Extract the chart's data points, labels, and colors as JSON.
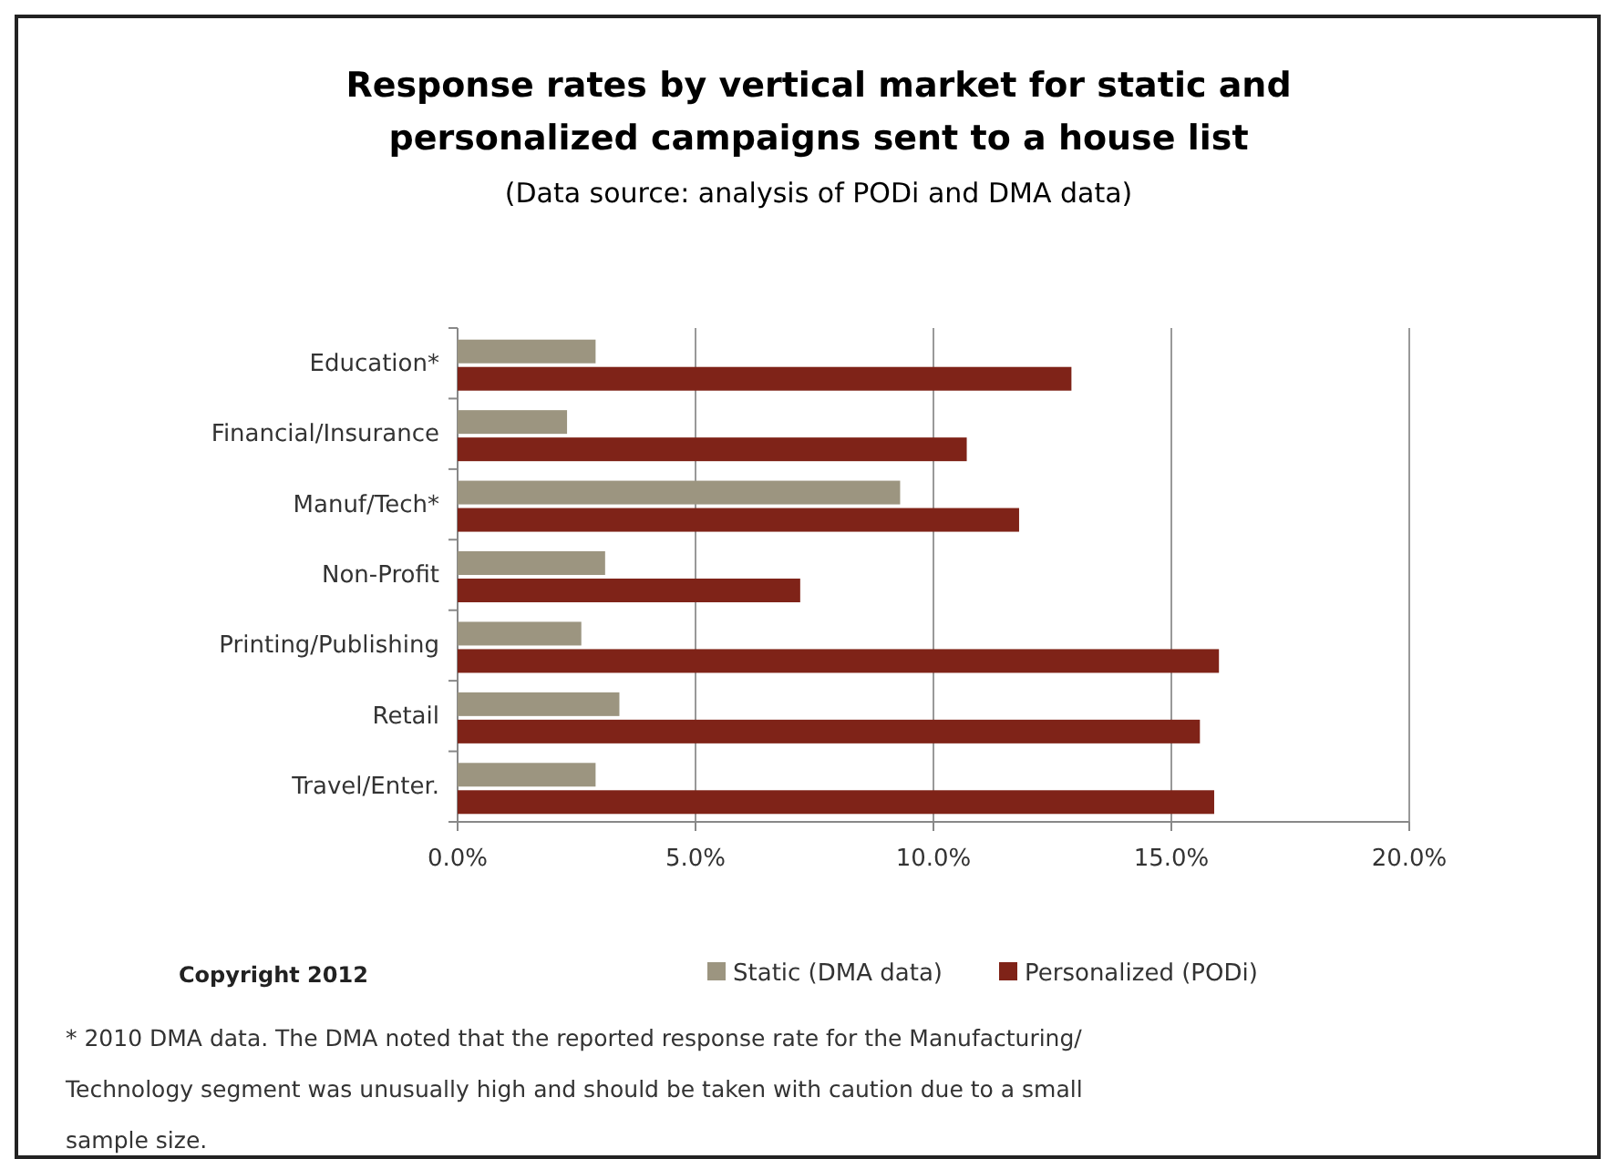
{
  "chart_data": {
    "type": "bar",
    "orientation": "horizontal",
    "title": "Response rates by vertical market for static and personalized campaigns sent to a house list",
    "subtitle": "(Data source: analysis of PODi and DMA data)",
    "categories": [
      "Education*",
      "Financial/Insurance",
      "Manuf/Tech*",
      "Non-Profit",
      "Printing/Publishing",
      "Retail",
      "Travel/Enter."
    ],
    "series": [
      {
        "name": "Static (DMA data)",
        "color": "#9c9580",
        "values": [
          2.9,
          2.3,
          9.3,
          3.1,
          2.6,
          3.4,
          2.9
        ]
      },
      {
        "name": "Personalized (PODi)",
        "color": "#7f2318",
        "values": [
          12.9,
          10.7,
          11.8,
          7.2,
          16.0,
          15.6,
          15.9
        ]
      }
    ],
    "xlim": [
      0,
      20
    ],
    "xticks": [
      {
        "value": 0,
        "label": "0.0%"
      },
      {
        "value": 5,
        "label": "5.0%"
      },
      {
        "value": 10,
        "label": "10.0%"
      },
      {
        "value": 15,
        "label": "15.0%"
      },
      {
        "value": 20,
        "label": "20.0%"
      }
    ],
    "grid": "x",
    "legend": "bottom",
    "annotations": [
      "Copyright 2012",
      "* 2010 DMA data. The DMA noted that the reported response rate for the Manufacturing/ Technology segment was unusually high and should be taken with caution due to a small sample size."
    ]
  }
}
